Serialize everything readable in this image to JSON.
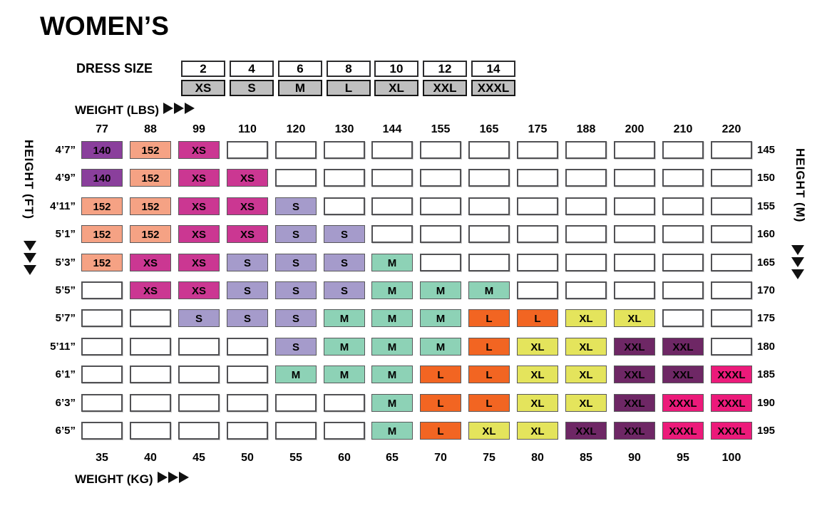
{
  "title": "WOMEN’S",
  "dress_size": {
    "label": "DRESS SIZE",
    "numbers": [
      "2",
      "4",
      "6",
      "8",
      "10",
      "12",
      "14"
    ],
    "letters": [
      "XS",
      "S",
      "M",
      "L",
      "XL",
      "XXL",
      "XXXL"
    ]
  },
  "weight_lbs_label": "WEIGHT (LBS)",
  "weight_kg_label": "WEIGHT (KG)",
  "height_ft_label": "HEIGHT (FT)",
  "height_m_label": "HEIGHT (M)",
  "chart_data": {
    "type": "table",
    "title": "WOMEN’S",
    "xlabel_top": "WEIGHT (LBS)",
    "xlabel_bottom": "WEIGHT (KG)",
    "ylabel_left": "HEIGHT (FT)",
    "ylabel_right": "HEIGHT (M)",
    "columns_weight_lbs": [
      "77",
      "88",
      "99",
      "110",
      "120",
      "130",
      "144",
      "155",
      "165",
      "175",
      "188",
      "200",
      "210",
      "220"
    ],
    "columns_weight_kg": [
      "35",
      "40",
      "45",
      "50",
      "55",
      "60",
      "65",
      "70",
      "75",
      "80",
      "85",
      "90",
      "95",
      "100"
    ],
    "dress_size_map": {
      "2": "XS",
      "4": "S",
      "6": "M",
      "8": "L",
      "10": "XL",
      "12": "XXL",
      "14": "XXXL"
    },
    "rows": [
      {
        "height_ft": "4’7”",
        "height_cm": "145",
        "cells": [
          "140",
          "152",
          "XS",
          "",
          "",
          "",
          "",
          "",
          "",
          "",
          "",
          "",
          "",
          ""
        ]
      },
      {
        "height_ft": "4’9”",
        "height_cm": "150",
        "cells": [
          "140",
          "152",
          "XS",
          "XS",
          "",
          "",
          "",
          "",
          "",
          "",
          "",
          "",
          "",
          ""
        ]
      },
      {
        "height_ft": "4’11”",
        "height_cm": "155",
        "cells": [
          "152",
          "152",
          "XS",
          "XS",
          "S",
          "",
          "",
          "",
          "",
          "",
          "",
          "",
          "",
          ""
        ]
      },
      {
        "height_ft": "5’1”",
        "height_cm": "160",
        "cells": [
          "152",
          "152",
          "XS",
          "XS",
          "S",
          "S",
          "",
          "",
          "",
          "",
          "",
          "",
          "",
          ""
        ]
      },
      {
        "height_ft": "5’3”",
        "height_cm": "165",
        "cells": [
          "152",
          "XS",
          "XS",
          "S",
          "S",
          "S",
          "M",
          "",
          "",
          "",
          "",
          "",
          "",
          ""
        ]
      },
      {
        "height_ft": "5’5”",
        "height_cm": "170",
        "cells": [
          "",
          "XS",
          "XS",
          "S",
          "S",
          "S",
          "M",
          "M",
          "M",
          "",
          "",
          "",
          "",
          ""
        ]
      },
      {
        "height_ft": "5’7”",
        "height_cm": "175",
        "cells": [
          "",
          "",
          "S",
          "S",
          "S",
          "M",
          "M",
          "M",
          "L",
          "L",
          "XL",
          "XL",
          "",
          ""
        ]
      },
      {
        "height_ft": "5’11”",
        "height_cm": "180",
        "cells": [
          "",
          "",
          "",
          "",
          "S",
          "M",
          "M",
          "M",
          "L",
          "XL",
          "XL",
          "XXL",
          "XXL",
          ""
        ]
      },
      {
        "height_ft": "6’1”",
        "height_cm": "185",
        "cells": [
          "",
          "",
          "",
          "",
          "M",
          "M",
          "M",
          "L",
          "L",
          "XL",
          "XL",
          "XXL",
          "XXL",
          "XXXL"
        ]
      },
      {
        "height_ft": "6’3”",
        "height_cm": "190",
        "cells": [
          "",
          "",
          "",
          "",
          "",
          "",
          "M",
          "L",
          "L",
          "XL",
          "XL",
          "XXL",
          "XXXL",
          "XXXL"
        ]
      },
      {
        "height_ft": "6’5”",
        "height_cm": "195",
        "cells": [
          "",
          "",
          "",
          "",
          "",
          "",
          "M",
          "L",
          "XL",
          "XL",
          "XXL",
          "XXL",
          "XXXL",
          "XXXL"
        ]
      }
    ],
    "cell_colors": {
      "140": "#8A3F9C",
      "152": "#F5A284",
      "XS": "#CB3792",
      "S": "#A59BCB",
      "M": "#8DD2B6",
      "L": "#F26522",
      "XL": "#E4E45C",
      "XXL": "#6E2765",
      "XXXL": "#EC1A7A",
      "empty": "#FFFFFF",
      "dress_size_box": "#BFBFBF"
    }
  }
}
